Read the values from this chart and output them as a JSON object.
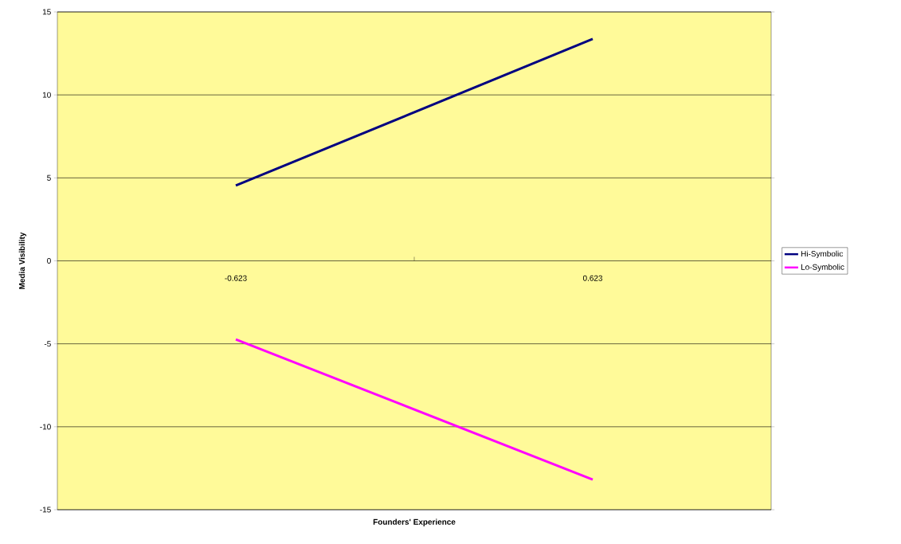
{
  "chart_data": {
    "type": "line",
    "xlabel": "Founders' Experience",
    "ylabel": "Media Visibility",
    "categories": [
      "-0.623",
      "0.623"
    ],
    "series": [
      {
        "name": "Hi-Symbolic",
        "color": "#000080",
        "values": [
          4.54,
          13.37
        ]
      },
      {
        "name": "Lo-Symbolic",
        "color": "#ff00ff",
        "values": [
          -4.73,
          -13.18
        ]
      }
    ],
    "ylim": [
      -15,
      15
    ],
    "yticks": [
      -15,
      -10,
      -5,
      0,
      5,
      10,
      15
    ],
    "grid": "y",
    "legend": "right",
    "marker": "none",
    "line_style": "solid"
  }
}
